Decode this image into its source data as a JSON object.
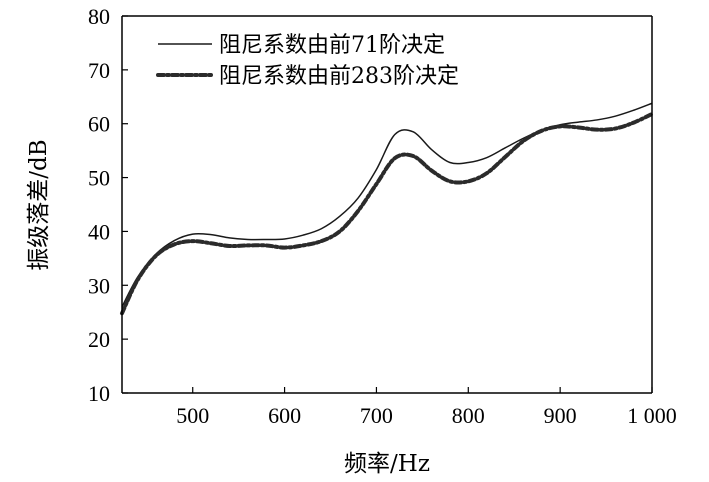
{
  "chart_data": {
    "type": "line",
    "title": "",
    "xlabel": "频率/Hz",
    "ylabel": "振级落差/dB",
    "xlim": [
      423,
      1000
    ],
    "ylim": [
      10,
      80
    ],
    "xticks": [
      500,
      600,
      700,
      800,
      900,
      1000
    ],
    "xtick_labels": [
      "500",
      "600",
      "700",
      "800",
      "900",
      "1 000"
    ],
    "yticks": [
      10,
      20,
      30,
      40,
      50,
      60,
      70,
      80
    ],
    "ytick_labels": [
      "10",
      "20",
      "30",
      "40",
      "50",
      "60",
      "70",
      "80"
    ],
    "grid": false,
    "legend_position": "top-left",
    "series": [
      {
        "name": "阻尼系数由前71阶决定",
        "style": "solid-thin",
        "color": "#1a1a1a",
        "x": [
          423,
          440,
          460,
          480,
          500,
          520,
          540,
          560,
          580,
          600,
          620,
          640,
          660,
          680,
          700,
          720,
          740,
          760,
          780,
          800,
          820,
          840,
          860,
          880,
          900,
          920,
          940,
          960,
          980,
          1000
        ],
        "y": [
          26,
          31.5,
          35.8,
          38.3,
          39.5,
          39.4,
          38.8,
          38.5,
          38.5,
          38.6,
          39.3,
          40.5,
          42.8,
          46.2,
          51.5,
          58.0,
          58.5,
          55.2,
          52.8,
          52.8,
          53.7,
          55.5,
          57.3,
          58.8,
          59.8,
          60.3,
          60.7,
          61.4,
          62.5,
          63.8
        ]
      },
      {
        "name": "阻尼系数由前283阶决定",
        "style": "dash-dot-thick",
        "color": "#2b2b2b",
        "x": [
          423,
          440,
          460,
          480,
          500,
          520,
          540,
          560,
          580,
          600,
          620,
          640,
          660,
          680,
          700,
          720,
          740,
          760,
          780,
          800,
          820,
          840,
          860,
          880,
          900,
          920,
          940,
          960,
          980,
          1000
        ],
        "y": [
          24.8,
          31,
          35.5,
          37.6,
          38.2,
          37.8,
          37.3,
          37.4,
          37.4,
          37.0,
          37.4,
          38.2,
          40.0,
          43.8,
          48.8,
          53.6,
          54.0,
          51.3,
          49.3,
          49.3,
          50.8,
          53.8,
          56.8,
          58.7,
          59.5,
          59.3,
          58.9,
          59.1,
          60.2,
          61.8
        ]
      }
    ]
  }
}
